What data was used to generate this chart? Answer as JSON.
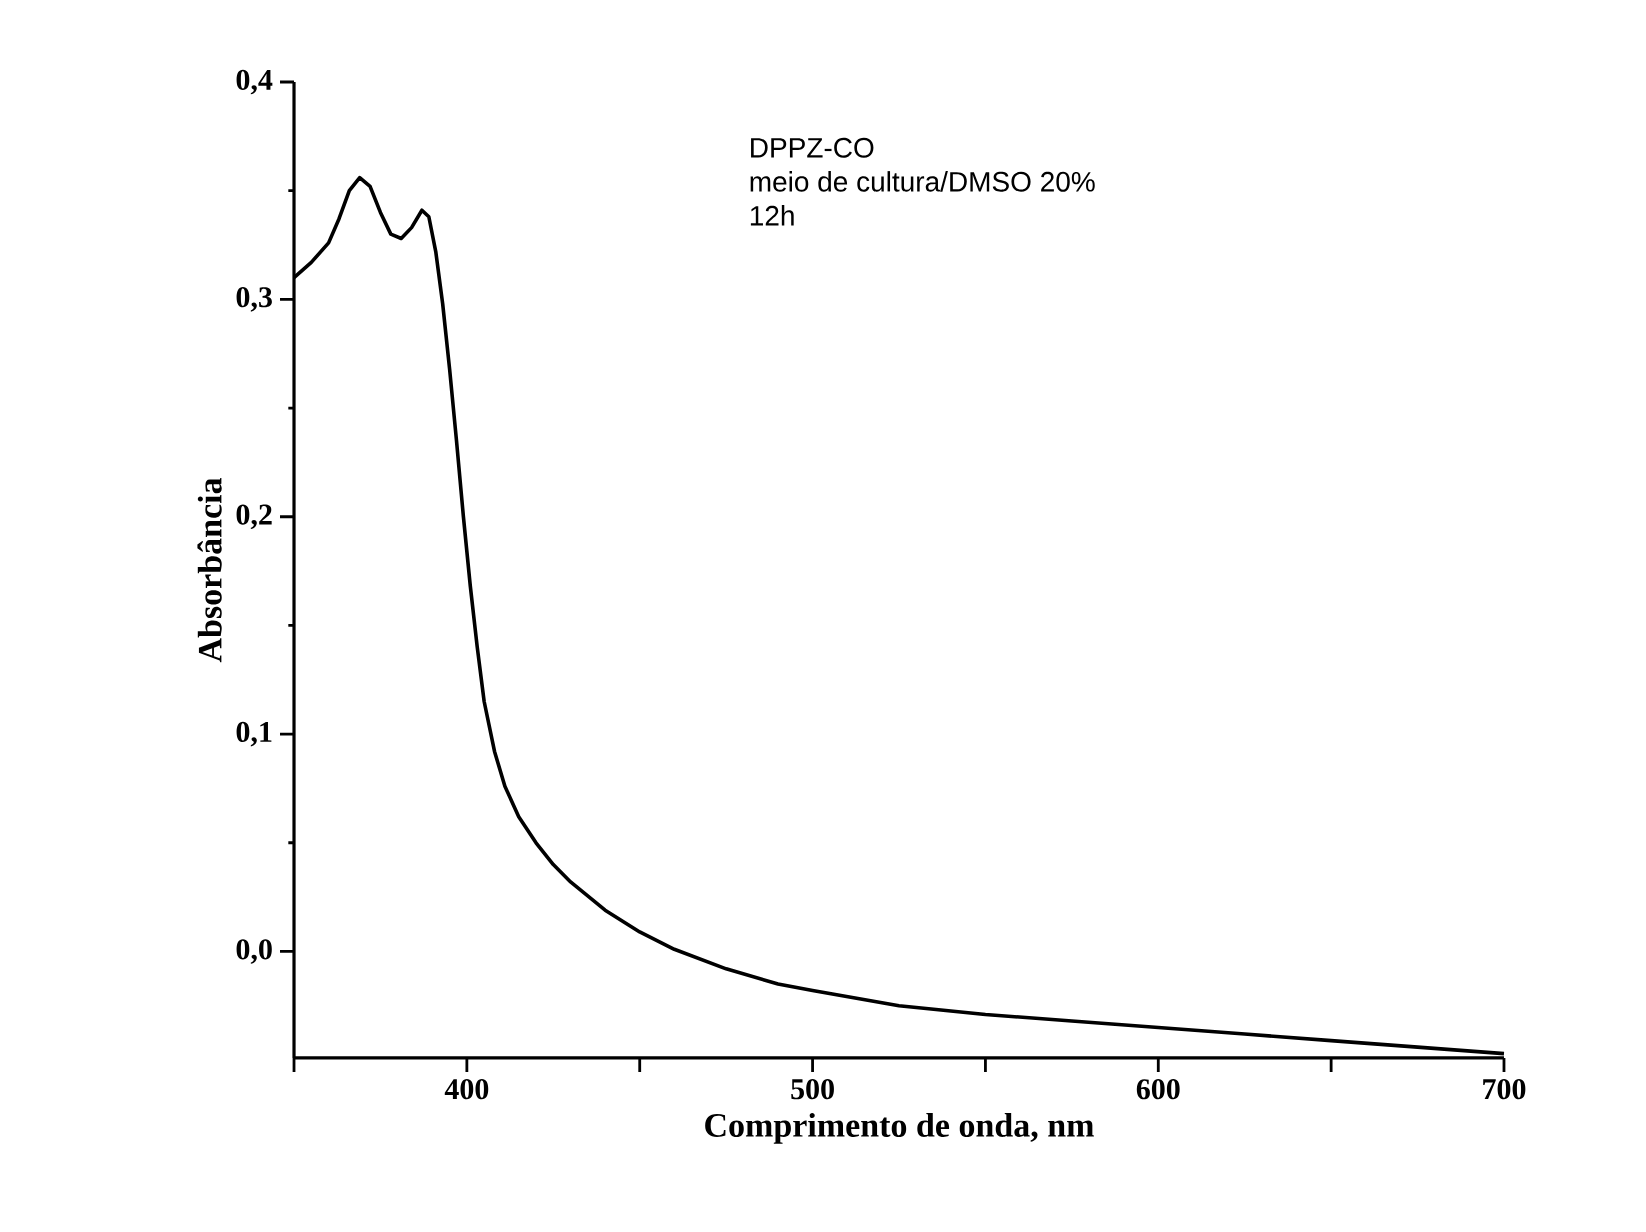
{
  "chart_data": {
    "type": "line",
    "xlabel": "Comprimento de onda, nm",
    "ylabel": "Absorbância",
    "annotations": [
      "DPPZ-CO",
      "meio de cultura/DMSO 20%",
      "12h"
    ],
    "x": [
      350,
      355,
      360,
      363,
      366,
      369,
      372,
      375,
      378,
      381,
      384,
      387,
      389,
      391,
      393,
      395,
      397,
      399,
      401,
      403,
      405,
      408,
      411,
      415,
      420,
      425,
      430,
      440,
      450,
      460,
      475,
      490,
      500,
      525,
      550,
      575,
      600,
      625,
      650,
      675,
      700
    ],
    "series": [
      {
        "color": "#000000",
        "values": [
          0.31,
          0.317,
          0.326,
          0.337,
          0.35,
          0.356,
          0.352,
          0.34,
          0.33,
          0.328,
          0.333,
          0.341,
          0.338,
          0.322,
          0.298,
          0.268,
          0.235,
          0.2,
          0.168,
          0.14,
          0.115,
          0.092,
          0.076,
          0.062,
          0.05,
          0.04,
          0.032,
          0.019,
          0.009,
          0.001,
          -0.008,
          -0.015,
          -0.018,
          -0.025,
          -0.029,
          -0.032,
          -0.035,
          -0.038,
          -0.041,
          -0.044,
          -0.047
        ]
      }
    ],
    "xlim": [
      350,
      700
    ],
    "ylim": [
      -0.049,
      0.4
    ],
    "xticks": [
      {
        "value": 350,
        "label": null
      },
      400,
      {
        "value": 450,
        "label": null
      },
      500,
      {
        "value": 550,
        "label": null
      },
      600,
      {
        "value": 650,
        "label": null
      },
      700
    ],
    "yticks": [
      {
        "value": 0.0,
        "label": "0,0"
      },
      {
        "value": 0.1,
        "label": "0,1"
      },
      {
        "value": 0.2,
        "label": "0,2"
      },
      {
        "value": 0.3,
        "label": "0,3"
      },
      {
        "value": 0.4,
        "label": "0,4"
      }
    ],
    "grid": false,
    "marker": "none",
    "line_style": "solid"
  }
}
